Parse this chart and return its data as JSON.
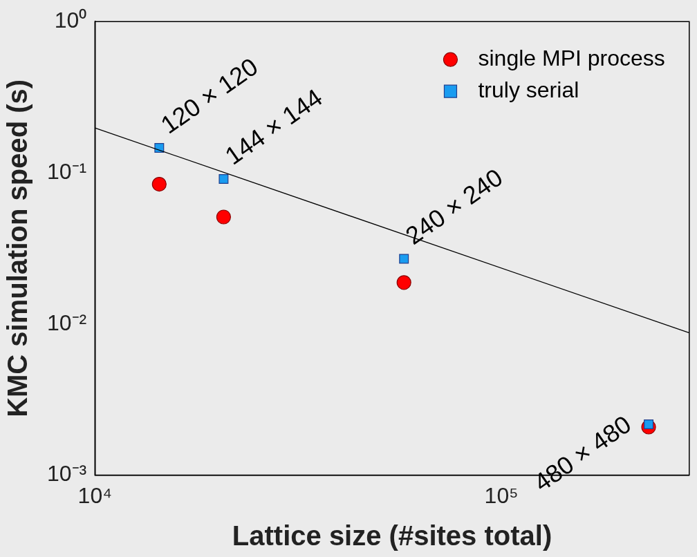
{
  "chart_data": {
    "type": "scatter",
    "xlabel": "Lattice size (#sites total)",
    "ylabel": "KMC simulation speed (s)",
    "x": [
      14400,
      20736,
      57600,
      230400
    ],
    "series": [
      {
        "name": "single MPI process",
        "color": "#ff0000",
        "marker": "circle",
        "values": [
          0.084,
          0.051,
          0.0188,
          0.00208
        ]
      },
      {
        "name": "truly serial",
        "color": "#1a9cf0",
        "marker": "square",
        "values": [
          0.146,
          0.091,
          0.027,
          0.00217
        ]
      },
      {
        "type": "line",
        "x": [
          10000,
          290000
        ],
        "color": "#000000",
        "marker": "none",
        "values": [
          0.198,
          0.00873
        ]
      }
    ],
    "log": "xy",
    "xlim": [
      10000,
      290000
    ],
    "ylim": [
      0.001,
      1
    ],
    "xticks": [
      {
        "value": 10000,
        "label": "10⁴"
      },
      {
        "value": 100000,
        "label": "10⁵"
      }
    ],
    "yticks": [
      {
        "value": 0.001,
        "label": "10⁻³"
      },
      {
        "value": 0.01,
        "label": "10⁻²"
      },
      {
        "value": 0.1,
        "label": "10⁻¹"
      },
      {
        "value": 1,
        "label": "10⁰"
      }
    ],
    "grid": false,
    "legend": "top right",
    "annotations": [
      {
        "text": "120 × 120",
        "x": 14400,
        "y": 0.146
      },
      {
        "text": "144 × 144",
        "x": 20736,
        "y": 0.091
      },
      {
        "text": "240 × 240",
        "x": 57600,
        "y": 0.027
      },
      {
        "text": "480 × 480",
        "x": 230400,
        "y": 0.00217
      }
    ]
  }
}
